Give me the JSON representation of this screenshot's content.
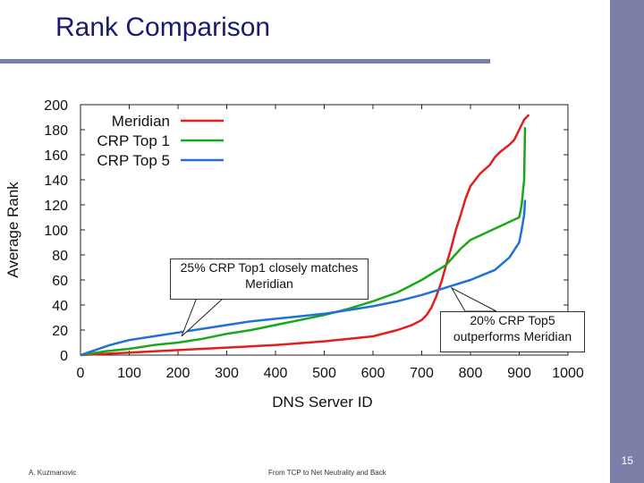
{
  "slide": {
    "title": "Rank Comparison",
    "page_number": "15",
    "footer_author": "A. Kuzmanovic",
    "footer_talk": "From TCP to Net Neutrality and Back"
  },
  "callouts": {
    "c1": "25% CRP Top1 closely matches Meridian",
    "c2": "20% CRP Top5 outperforms Meridian"
  },
  "chart_data": {
    "type": "line",
    "title": "",
    "xlabel": "DNS Server ID",
    "ylabel": "Average Rank",
    "xlim": [
      0,
      1000
    ],
    "ylim": [
      0,
      200
    ],
    "xticks": [
      0,
      100,
      200,
      300,
      400,
      500,
      600,
      700,
      800,
      900,
      1000
    ],
    "yticks": [
      0,
      20,
      40,
      60,
      80,
      100,
      120,
      140,
      160,
      180,
      200
    ],
    "grid": false,
    "legend_position": "top-left",
    "series": [
      {
        "name": "Meridian",
        "color": "#e0201c",
        "x": [
          0,
          100,
          200,
          300,
          400,
          500,
          600,
          650,
          680,
          700,
          710,
          720,
          730,
          740,
          750,
          760,
          770,
          780,
          790,
          800,
          820,
          840,
          850,
          860,
          880,
          890,
          900,
          910,
          920
        ],
        "y": [
          0,
          2,
          4,
          6,
          8,
          11,
          15,
          20,
          24,
          28,
          32,
          38,
          47,
          58,
          72,
          85,
          100,
          112,
          125,
          135,
          145,
          152,
          158,
          162,
          168,
          172,
          180,
          188,
          192
        ]
      },
      {
        "name": "CRP Top 1",
        "color": "#1aa81a",
        "x": [
          0,
          50,
          100,
          150,
          200,
          250,
          300,
          350,
          400,
          450,
          500,
          550,
          600,
          650,
          700,
          750,
          780,
          800,
          850,
          900,
          905,
          910,
          912
        ],
        "y": [
          0,
          3,
          5,
          8,
          10,
          13,
          17,
          20,
          24,
          28,
          32,
          37,
          43,
          50,
          60,
          72,
          85,
          92,
          101,
          110,
          120,
          140,
          182
        ]
      },
      {
        "name": "CRP Top 5",
        "color": "#2070d8",
        "x": [
          0,
          30,
          60,
          100,
          150,
          200,
          250,
          300,
          350,
          400,
          450,
          500,
          550,
          600,
          650,
          700,
          750,
          800,
          850,
          880,
          900,
          905,
          910,
          912
        ],
        "y": [
          0,
          4,
          8,
          12,
          15,
          18,
          21,
          24,
          27,
          29,
          31,
          33,
          36,
          39,
          43,
          48,
          54,
          60,
          68,
          78,
          90,
          100,
          112,
          124
        ]
      }
    ]
  }
}
